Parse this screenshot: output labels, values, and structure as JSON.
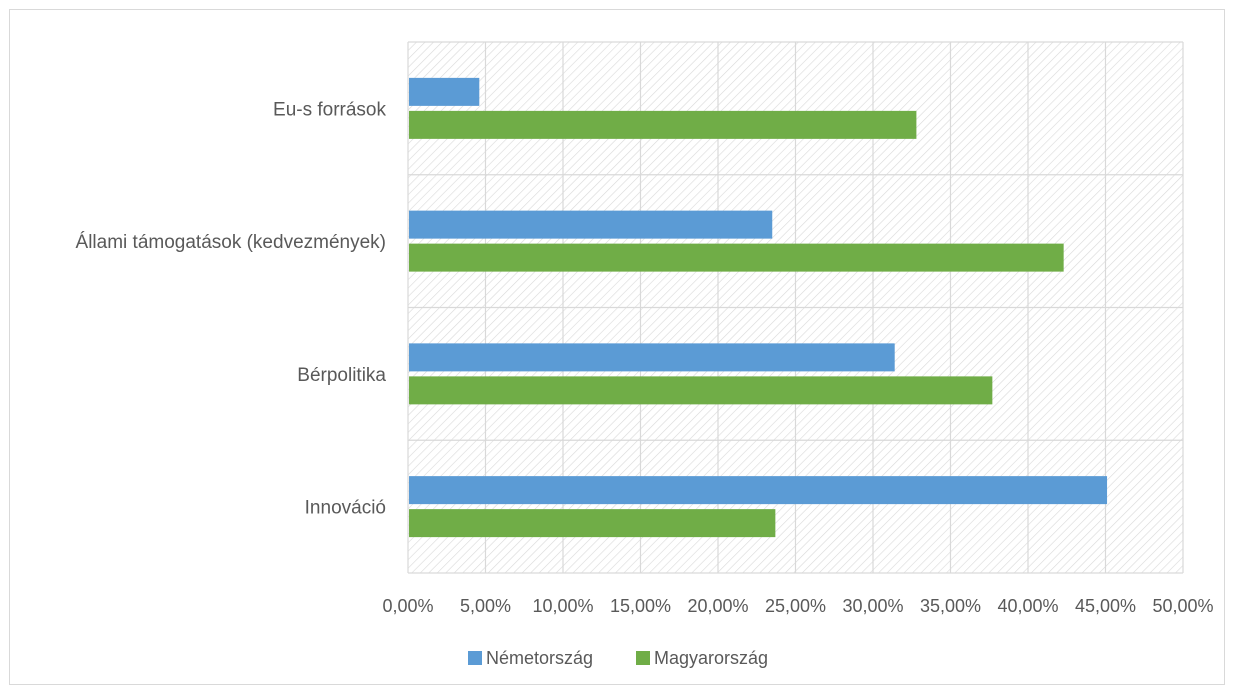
{
  "chart_data": {
    "type": "bar",
    "orientation": "horizontal",
    "categories": [
      "Eu-s források",
      "Állami támogatások (kedvezmények)",
      "Bérpolitika",
      "Innováció"
    ],
    "series": [
      {
        "name": "Németország",
        "color": "#5b9bd5",
        "values": [
          4.6,
          23.5,
          31.4,
          45.1
        ]
      },
      {
        "name": "Magyarország",
        "color": "#70ad47",
        "values": [
          32.8,
          42.3,
          37.7,
          23.7
        ]
      }
    ],
    "xlim": [
      0,
      50
    ],
    "x_ticks": [
      0,
      5,
      10,
      15,
      20,
      25,
      30,
      35,
      40,
      45,
      50
    ],
    "x_tick_labels": [
      "0,00%",
      "5,00%",
      "10,00%",
      "15,00%",
      "20,00%",
      "25,00%",
      "30,00%",
      "35,00%",
      "40,00%",
      "45,00%",
      "50,00%"
    ],
    "grid": true,
    "plot_background": "hatched",
    "legend_position": "bottom"
  }
}
